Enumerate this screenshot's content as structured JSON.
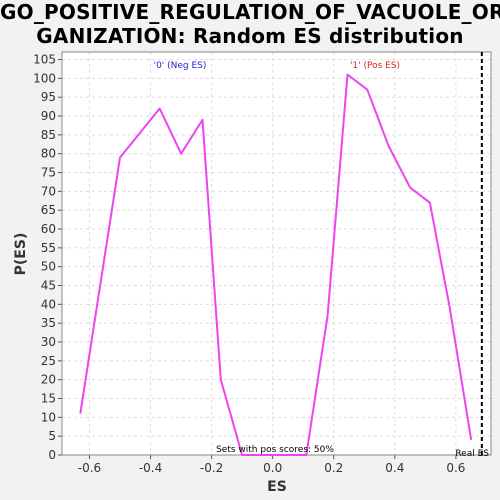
{
  "title_lines": [
    "GO_POSITIVE_REGULATION_OF_VACUOLE_OR",
    "GANIZATION: Random ES distribution"
  ],
  "chart_data": {
    "type": "line",
    "title": "GO_POSITIVE_REGULATION_OF_VACUOLE_ORGANIZATION: Random ES distribution",
    "xlabel": "ES",
    "ylabel": "P(ES)",
    "xlim": [
      -0.69,
      0.715
    ],
    "ylim": [
      0,
      107
    ],
    "x_ticks": [
      -0.6,
      -0.4,
      -0.2,
      0.0,
      0.2,
      0.4,
      0.6
    ],
    "x_tick_labels": [
      "-0.6",
      "-0.4",
      "-0.2",
      "0.0",
      "0.2",
      "0.4",
      "0.6"
    ],
    "y_ticks": [
      0,
      5,
      10,
      15,
      20,
      25,
      30,
      35,
      40,
      45,
      50,
      55,
      60,
      65,
      70,
      75,
      80,
      85,
      90,
      95,
      100,
      105
    ],
    "grid": true,
    "series": [
      {
        "color": "#ee44ee",
        "x": [
          -0.63,
          -0.5,
          -0.43,
          -0.37,
          -0.3,
          -0.23,
          -0.17,
          -0.1,
          -0.03,
          0.04,
          0.11,
          0.18,
          0.245,
          0.31,
          0.38,
          0.45,
          0.515,
          0.58,
          0.65
        ],
        "y": [
          11,
          79,
          86,
          92,
          80,
          89,
          20,
          0,
          0,
          0,
          0,
          37,
          101,
          97,
          82,
          71,
          67,
          39,
          4
        ]
      }
    ],
    "annotations": {
      "neg_label": "'0' (Neg ES)",
      "pos_label": "'1' (Pos ES)",
      "sets_text": "Sets with pos scores: 50%",
      "real_es_label": "Real ES",
      "real_es_x": 0.685
    },
    "colors": {
      "neg": "#2222cc",
      "pos": "#dd2222",
      "grid": "#dddddd",
      "plot_bg": "#ffffff"
    }
  }
}
